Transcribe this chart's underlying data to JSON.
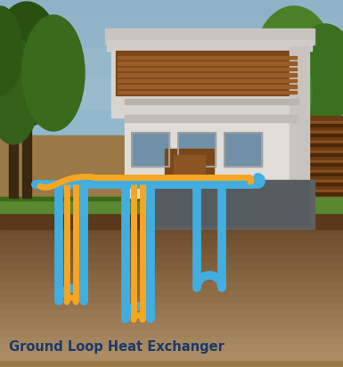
{
  "title": "Ground Loop Heat Exchanger",
  "title_color": "#1a3a6b",
  "title_fontsize": 10.5,
  "pipe_blue": "#42aee0",
  "pipe_orange": "#f5a623",
  "pipe_lw_outer": 7,
  "pipe_lw_inner": 5,
  "bg_color": "#b8a080",
  "ground_top_color": "#6b4a28",
  "ground_mid_color": "#8a6a48",
  "ground_bot_color": "#b0906a",
  "sky_color": "#a8c0d0",
  "grass_color": "#5a8830"
}
